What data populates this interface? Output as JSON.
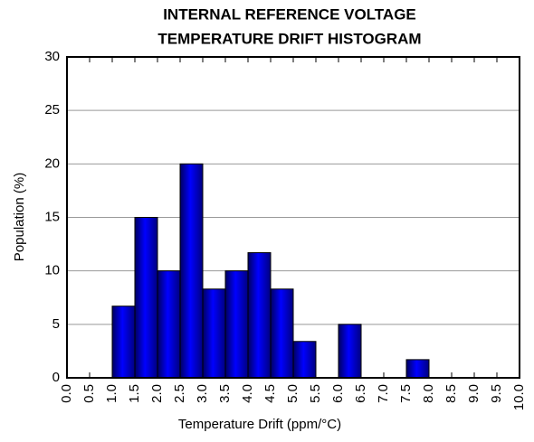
{
  "chart_data": {
    "type": "histogram",
    "title": [
      "INTERNAL REFERENCE VOLTAGE",
      "TEMPERATURE DRIFT HISTOGRAM"
    ],
    "x_label": "Temperature Drift (ppm/°C)",
    "y_label": "Population (%)",
    "bins": [
      0,
      0.5,
      1,
      1.5,
      2,
      2.5,
      3,
      3.5,
      4,
      4.5,
      5,
      5.5,
      6,
      6.5,
      7,
      7.5,
      8,
      8.5,
      9,
      9.5,
      10
    ],
    "values": [
      0,
      0,
      6.7,
      15,
      10,
      20,
      8.3,
      10,
      11.7,
      8.3,
      3.4,
      0,
      5,
      0,
      0,
      1.7,
      0,
      0,
      0,
      0
    ],
    "color": "#0000ff",
    "xlim": [
      0,
      10
    ],
    "xticks": [
      {
        "value": 0,
        "label": "0.0"
      },
      0.5,
      {
        "value": 1,
        "label": "1.0"
      },
      1.5,
      {
        "value": 2,
        "label": "2.0"
      },
      2.5,
      {
        "value": 3,
        "label": "3.0"
      },
      3.5,
      {
        "value": 4,
        "label": "4.0"
      },
      4.5,
      {
        "value": 5,
        "label": "5.0"
      },
      5.5,
      {
        "value": 6,
        "label": "6.0"
      },
      6.5,
      {
        "value": 7,
        "label": "7.0"
      },
      7.5,
      {
        "value": 8,
        "label": "8.0"
      },
      8.5,
      {
        "value": 9,
        "label": "9.0"
      },
      9.5,
      {
        "value": 10,
        "label": "10.0"
      }
    ],
    "ylim": [
      0,
      30
    ],
    "yticks": [
      0,
      5,
      10,
      15,
      20,
      25,
      30
    ],
    "grid": true
  }
}
